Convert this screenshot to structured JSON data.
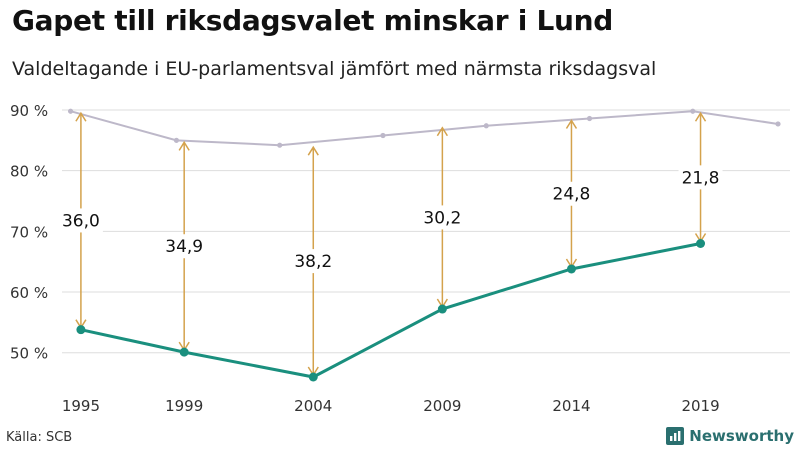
{
  "title": "Gapet till riksdagsvalet minskar i Lund",
  "subtitle": "Valdeltagande i EU-parlamentsval jämfört med närmsta riksdagsval",
  "source": "Källa: SCB",
  "brand": {
    "name": "Newsworthy",
    "logo_icon": "bar-chart-icon"
  },
  "colors": {
    "riksdag": "#bdb8c9",
    "eu": "#1a8f7e",
    "arrow": "#d4a24c",
    "grid": "#dddddd",
    "brand": "#2a6f6f"
  },
  "chart_data": {
    "type": "line",
    "ylim": [
      46,
      90
    ],
    "xlim": [
      1994.5,
      2022
    ],
    "yticks": [
      50,
      60,
      70,
      80,
      90
    ],
    "ytick_labels": [
      "50 %",
      "60 %",
      "70 %",
      "80 %",
      "90 %"
    ],
    "xticks": [
      1995,
      1999,
      2004,
      2009,
      2014,
      2019
    ],
    "grid": true,
    "series": [
      {
        "key": "riksdag",
        "x": [
          1994.6,
          1998.7,
          2002.7,
          2006.7,
          2010.7,
          2014.7,
          2018.7,
          2022
        ],
        "y": [
          89.8,
          85.0,
          84.2,
          85.8,
          87.4,
          88.6,
          89.8,
          87.7
        ]
      },
      {
        "key": "eu",
        "x": [
          1995,
          1999,
          2004,
          2009,
          2014,
          2019
        ],
        "y": [
          53.8,
          50.1,
          46.0,
          57.2,
          63.8,
          68.0
        ]
      }
    ],
    "gaps": [
      {
        "x": 1995,
        "from": 53.8,
        "to": 89.8,
        "label": "36,0"
      },
      {
        "x": 1999,
        "from": 50.1,
        "to": 85.0,
        "label": "34,9"
      },
      {
        "x": 2004,
        "from": 46.0,
        "to": 84.2,
        "label": "38,2"
      },
      {
        "x": 2009,
        "from": 57.2,
        "to": 87.4,
        "label": "30,2"
      },
      {
        "x": 2014,
        "from": 63.8,
        "to": 88.6,
        "label": "24,8"
      },
      {
        "x": 2019,
        "from": 68.0,
        "to": 89.8,
        "label": "21,8"
      }
    ]
  }
}
